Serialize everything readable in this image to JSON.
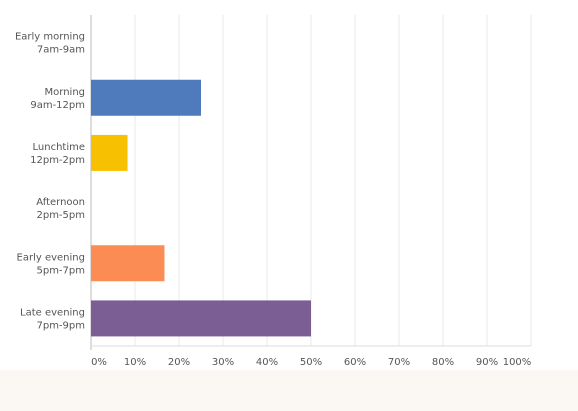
{
  "chart_data": {
    "type": "hbar",
    "categories": [
      [
        "Early morning",
        "7am-9am"
      ],
      [
        "Morning",
        "9am-12pm"
      ],
      [
        "Lunchtime",
        "12pm-2pm"
      ],
      [
        "Afternoon",
        "2pm-5pm"
      ],
      [
        "Early evening",
        "5pm-7pm"
      ],
      [
        "Late evening",
        "7pm-9pm"
      ]
    ],
    "values": [
      0,
      25,
      8.3,
      0,
      16.7,
      50
    ],
    "colors": [
      "#4f7bbd",
      "#4f7bbd",
      "#f7c000",
      "#fb8c54",
      "#fb8c54",
      "#7b5e93"
    ],
    "xlim": [
      0,
      100
    ],
    "xticks": [
      {
        "value": 0,
        "label": "0%"
      },
      {
        "value": 10,
        "label": "10%"
      },
      {
        "value": 20,
        "label": "20%"
      },
      {
        "value": 30,
        "label": "30%"
      },
      {
        "value": 40,
        "label": "40%"
      },
      {
        "value": 50,
        "label": "50%"
      },
      {
        "value": 60,
        "label": "60%"
      },
      {
        "value": 70,
        "label": "70%"
      },
      {
        "value": 80,
        "label": "80%"
      },
      {
        "value": 90,
        "label": "90%"
      },
      {
        "value": 100,
        "label": "100%"
      }
    ],
    "grid": true
  }
}
